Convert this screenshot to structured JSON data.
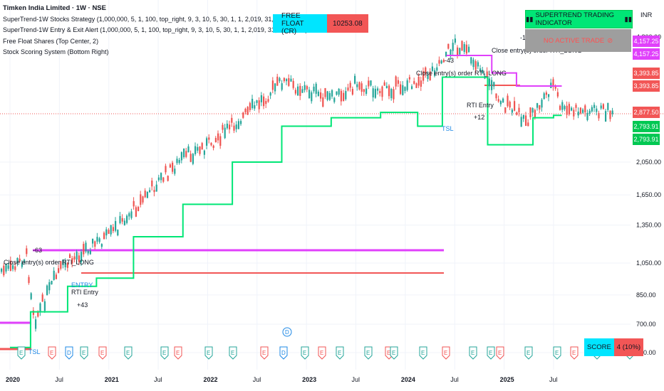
{
  "legend": {
    "title": "Timken India Limited · 1W · NSE",
    "line1": "SuperTrend-1W Stocks Strategy (1,000,000, 5, 1, 100, top_right, 9, 3, 10, 5, 30, 1, 1, 2,019, 31, 12, 2,030)",
    "line2": "SuperTrend-1W Entry & Exit Alert (1,000,000, 5, 1, 100, top_right, 9, 3, 10, 5, 30, 1, 1, 2,019, 31, 12, 2,030)",
    "line3": "Free Float Shares (Top Center, 2)",
    "line4": "Stock Scoring System (Bottom Right)"
  },
  "free_float": {
    "label": "FREE FLOAT (CR)",
    "value": "10253.08"
  },
  "supertrend_box": {
    "label": "SUPERTREND TRADING INDICATOR",
    "icon": "bar-chart-icon"
  },
  "trade_box": {
    "label": "NO ACTIVE TRADE",
    "icon": "no-entry-icon"
  },
  "currency": "INR",
  "score": {
    "label": "SCORE",
    "value": "4 (10%)"
  },
  "price_tags": [
    {
      "text": "4,157.25",
      "color": "#e040fb"
    },
    {
      "text": "4,157.25",
      "color": "#e040fb"
    },
    {
      "text": "3,393.85",
      "color": "#f25656"
    },
    {
      "text": "3,393.85",
      "color": "#f25656"
    },
    {
      "text": "2,877.50",
      "color": "#f25656"
    },
    {
      "text": "2,793.91",
      "color": "#00c853"
    },
    {
      "text": "2,793.91",
      "color": "#00c853"
    }
  ],
  "annotations": {
    "close_long_2020": "Close entry(s) order RTI_LONG",
    "minus63": "-63",
    "entry_2020": "ENTRY",
    "rti_entry_2020": "RTI Entry",
    "plus43": "+43",
    "tsl_2020": "TSL",
    "minus43": "-43",
    "close_long_2024": "Close entry(s) order RTI_LONG",
    "rti_entry_2024": "RTI Entry",
    "plus12": "+12",
    "tsl_2024": "TSL",
    "minus12": "-12",
    "close_long_2024b": "Close entry(s) order RTI_LONG"
  },
  "events": {
    "earnings_letter": "E",
    "dividend_letter": "D"
  },
  "chart_data": {
    "type": "line",
    "title": "Timken India Limited · 1W · NSE",
    "y_scale": "log",
    "y_ticks": [
      580,
      700,
      850,
      1050,
      1350,
      1650,
      2050,
      4800
    ],
    "x_ticks": [
      "2020",
      "Jul",
      "2021",
      "Jul",
      "2022",
      "Jul",
      "2023",
      "Jul",
      "2024",
      "Jul",
      "2025",
      "Jul"
    ],
    "series": [
      {
        "color": "#131722",
        "x": [
          "2020-01",
          "2020-03",
          "2020-04",
          "2020-07",
          "2020-10",
          "2021-01",
          "2021-04",
          "2021-07",
          "2021-10",
          "2022-01",
          "2022-04",
          "2022-07",
          "2022-10",
          "2023-01",
          "2023-04",
          "2023-07",
          "2023-10",
          "2024-01",
          "2024-04",
          "2024-07",
          "2024-10",
          "2025-01",
          "2025-04",
          "2025-07",
          "2025-08"
        ],
        "values": [
          1000,
          1100,
          720,
          1000,
          1150,
          1250,
          1500,
          1800,
          2100,
          2300,
          2600,
          3000,
          3500,
          3300,
          3100,
          3450,
          3300,
          3400,
          3700,
          4500,
          3900,
          3000,
          2700,
          3450,
          2877.5
        ]
      },
      {
        "color": "#00e676",
        "x": [
          "2020-01",
          "2020-06",
          "2020-10",
          "2021-01",
          "2021-07",
          "2022-01",
          "2022-07",
          "2023-01",
          "2023-07",
          "2024-01",
          "2024-04",
          "2024-07",
          "2025-03",
          "2025-06",
          "2025-08"
        ],
        "values": [
          600,
          760,
          900,
          950,
          1250,
          1550,
          2050,
          2600,
          2750,
          2850,
          2600,
          3600,
          2300,
          2750,
          2793.91
        ]
      },
      {
        "color": "#e040fb",
        "x": [
          "2024-06",
          "2024-10",
          "2025-01",
          "2025-04",
          "2025-08"
        ],
        "values": [
          4157.25,
          4157.25,
          3700,
          3393.85,
          3393.85
        ]
      }
    ],
    "grid": true
  }
}
